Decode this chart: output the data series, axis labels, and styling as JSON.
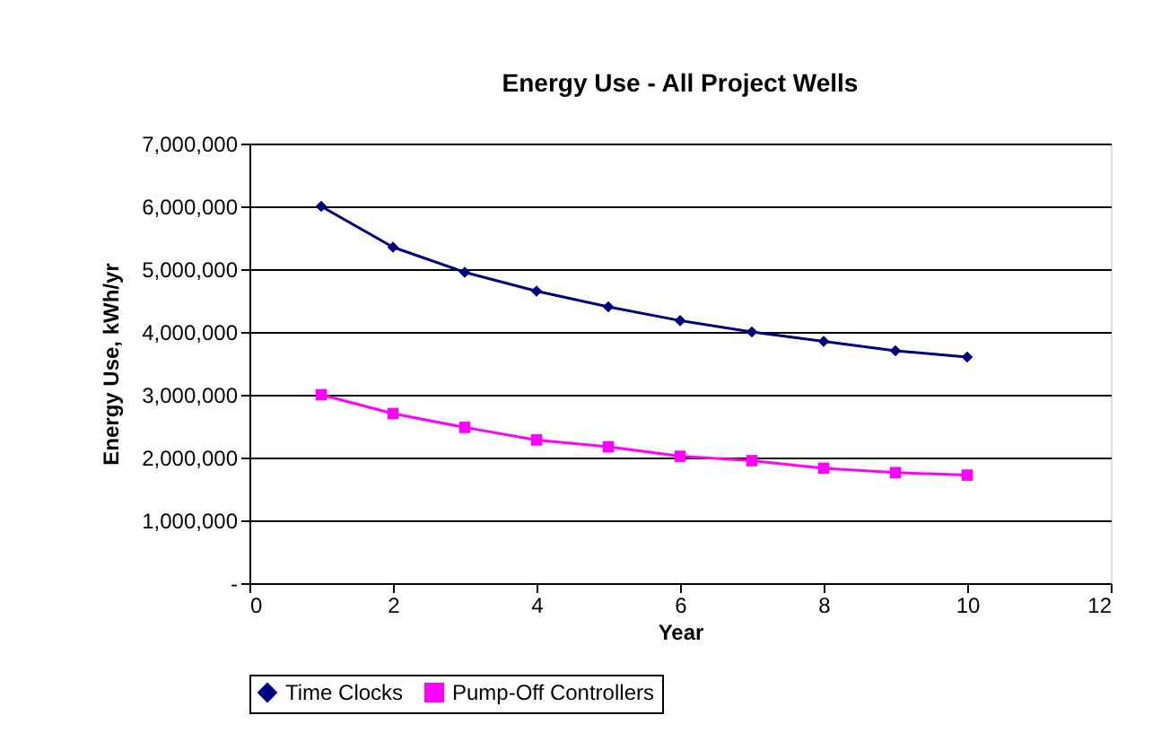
{
  "chart_data": {
    "type": "line",
    "title": "Energy Use - All Project Wells",
    "xlabel": "Year",
    "ylabel": "Energy Use, kWh/yr",
    "x": [
      1,
      2,
      3,
      4,
      5,
      6,
      7,
      8,
      9,
      10
    ],
    "series": [
      {
        "name": "Time Clocks",
        "color": "#000080",
        "marker": "diamond",
        "values": [
          6000000,
          5350000,
          4950000,
          4650000,
          4400000,
          4180000,
          4000000,
          3850000,
          3700000,
          3600000
        ]
      },
      {
        "name": "Pump-Off Controllers",
        "color": "#ff00ff",
        "marker": "square",
        "values": [
          3000000,
          2700000,
          2480000,
          2280000,
          2170000,
          2020000,
          1950000,
          1830000,
          1760000,
          1720000
        ]
      }
    ],
    "xlim": [
      0,
      12
    ],
    "xticks": [
      0,
      2,
      4,
      6,
      8,
      10,
      12
    ],
    "ylim": [
      0,
      7000000
    ],
    "yticks": [
      {
        "value": 0,
        "label": "-"
      },
      {
        "value": 1000000,
        "label": "1,000,000"
      },
      {
        "value": 2000000,
        "label": "2,000,000"
      },
      {
        "value": 3000000,
        "label": "3,000,000"
      },
      {
        "value": 4000000,
        "label": "4,000,000"
      },
      {
        "value": 5000000,
        "label": "5,000,000"
      },
      {
        "value": 6000000,
        "label": "6,000,000"
      },
      {
        "value": 7000000,
        "label": "7,000,000"
      }
    ],
    "grid": "y",
    "legend": "bottom",
    "line_style": "solid"
  }
}
